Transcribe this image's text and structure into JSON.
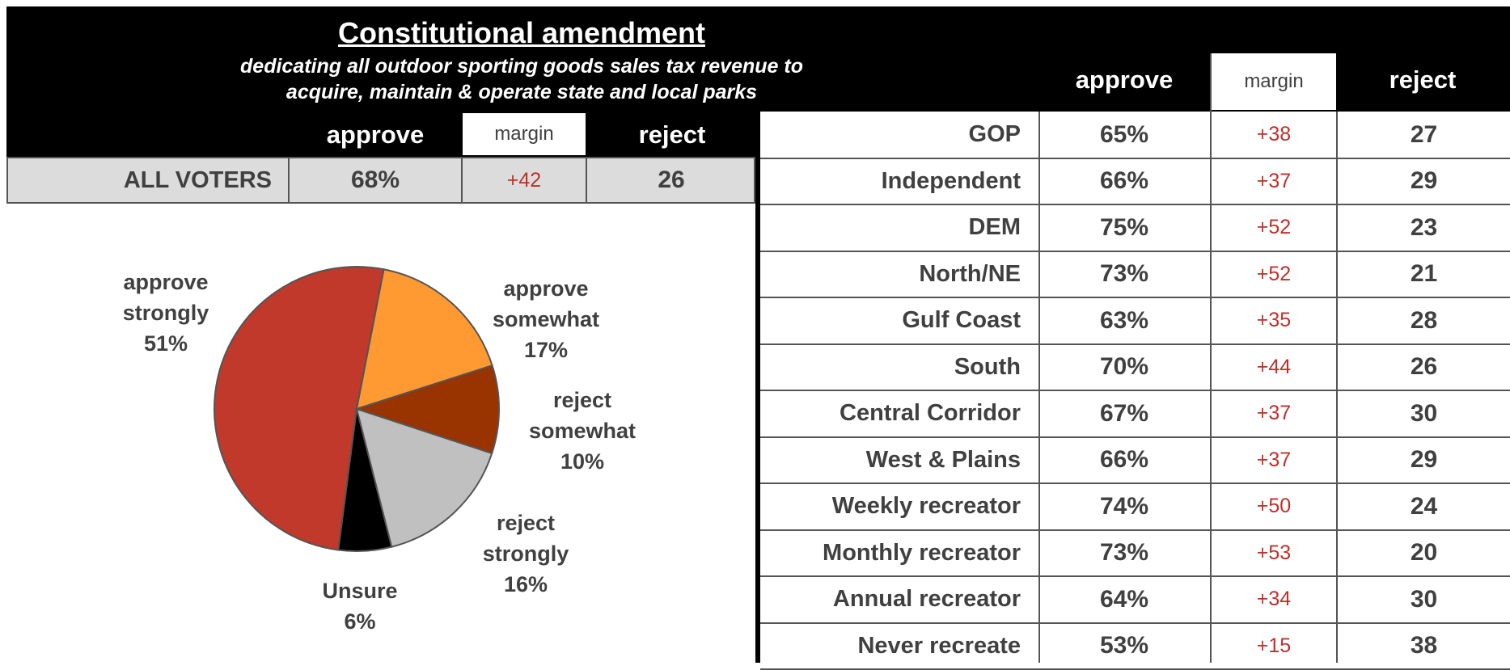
{
  "title": "Constitutional amendment",
  "subtitle_line1": "dedicating all outdoor sporting goods sales tax revenue to",
  "subtitle_line2": "acquire, maintain & operate state and local parks",
  "headers": {
    "approve": "approve",
    "margin": "margin",
    "reject": "reject"
  },
  "all_voters": {
    "label": "ALL VOTERS",
    "approve": "68%",
    "margin": "+42",
    "reject": "26"
  },
  "rows": [
    {
      "label": "GOP",
      "approve": "65%",
      "margin": "+38",
      "reject": "27"
    },
    {
      "label": "Independent",
      "approve": "66%",
      "margin": "+37",
      "reject": "29"
    },
    {
      "label": "DEM",
      "approve": "75%",
      "margin": "+52",
      "reject": "23"
    },
    {
      "label": "North/NE",
      "approve": "73%",
      "margin": "+52",
      "reject": "21"
    },
    {
      "label": "Gulf Coast",
      "approve": "63%",
      "margin": "+35",
      "reject": "28"
    },
    {
      "label": "South",
      "approve": "70%",
      "margin": "+44",
      "reject": "26"
    },
    {
      "label": "Central Corridor",
      "approve": "67%",
      "margin": "+37",
      "reject": "30"
    },
    {
      "label": "West & Plains",
      "approve": "66%",
      "margin": "+37",
      "reject": "29"
    },
    {
      "label": "Weekly recreator",
      "approve": "74%",
      "margin": "+50",
      "reject": "24"
    },
    {
      "label": "Monthly recreator",
      "approve": "73%",
      "margin": "+53",
      "reject": "20"
    },
    {
      "label": "Annual recreator",
      "approve": "64%",
      "margin": "+34",
      "reject": "30"
    },
    {
      "label": "Never recreate",
      "approve": "53%",
      "margin": "+15",
      "reject": "38"
    }
  ],
  "chart_data": {
    "type": "pie",
    "slices": [
      {
        "name": "approve strongly",
        "line1": "approve",
        "line2": "strongly",
        "pct": "51%",
        "value": 51,
        "color": "#c0392b"
      },
      {
        "name": "approve somewhat",
        "line1": "approve",
        "line2": "somewhat",
        "pct": "17%",
        "value": 17,
        "color": "#ff9a33"
      },
      {
        "name": "reject somewhat",
        "line1": "reject",
        "line2": "somewhat",
        "pct": "10%",
        "value": 10,
        "color": "#993300"
      },
      {
        "name": "reject strongly",
        "line1": "reject",
        "line2": "strongly",
        "pct": "16%",
        "value": 16,
        "color": "#c0c0c0"
      },
      {
        "name": "Unsure",
        "line1": "Unsure",
        "line2": "",
        "pct": "6%",
        "value": 6,
        "color": "#000000"
      }
    ]
  }
}
